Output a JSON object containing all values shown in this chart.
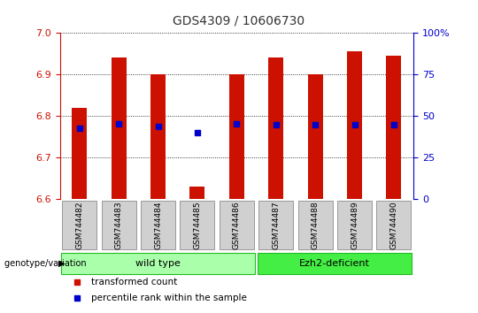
{
  "title": "GDS4309 / 10606730",
  "samples": [
    "GSM744482",
    "GSM744483",
    "GSM744484",
    "GSM744485",
    "GSM744486",
    "GSM744487",
    "GSM744488",
    "GSM744489",
    "GSM744490"
  ],
  "bar_bottom": 6.6,
  "bar_tops": [
    6.82,
    6.94,
    6.9,
    6.63,
    6.9,
    6.94,
    6.9,
    6.955,
    6.945
  ],
  "percentile_values": [
    6.77,
    6.78,
    6.775,
    6.76,
    6.78,
    6.778,
    6.778,
    6.778,
    6.778
  ],
  "ylim": [
    6.6,
    7.0
  ],
  "y2lim": [
    0,
    100
  ],
  "y_ticks": [
    6.6,
    6.7,
    6.8,
    6.9,
    7.0
  ],
  "y2_ticks": [
    0,
    25,
    50,
    75,
    100
  ],
  "bar_color": "#cc1100",
  "square_color": "#0000cc",
  "wild_type_color": "#aaffaa",
  "ezh2_color": "#44ee44",
  "wild_type_indices": [
    0,
    1,
    2,
    3,
    4
  ],
  "ezh2_indices": [
    5,
    6,
    7,
    8
  ],
  "wild_type_label": "wild type",
  "ezh2_label": "Ezh2-deficient",
  "group_label": "genotype/variation",
  "legend_items": [
    {
      "color": "#cc1100",
      "label": "transformed count"
    },
    {
      "color": "#0000cc",
      "label": "percentile rank within the sample"
    }
  ],
  "title_color": "#333333",
  "left_axis_color": "#cc1100",
  "right_axis_color": "#0000cc",
  "tick_label_bg": "#d0d0d0",
  "tick_label_edge": "#999999"
}
